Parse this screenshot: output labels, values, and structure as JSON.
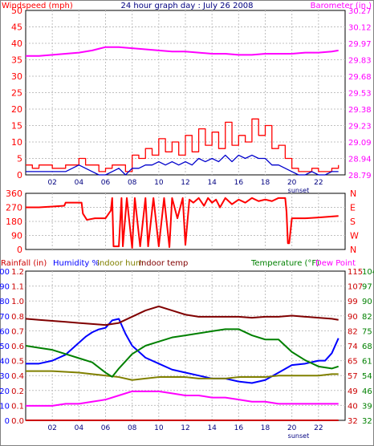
{
  "colors": {
    "windspeed": "#ff0000",
    "windavg": "#0000cc",
    "barometer": "#ff00ff",
    "direction": "#ff0000",
    "rainfall": "#cc0000",
    "humidity": "#0000ff",
    "indoor_hum": "#808000",
    "indoor_temp": "#800000",
    "temperature": "#008000",
    "dew_point": "#ff00ff",
    "grid": "#c0c0c0",
    "title": "#000080"
  },
  "chart_data": [
    {
      "type": "line",
      "title": "24 hour graph day : July 26 2008",
      "left_label": "Windspeed (mph)",
      "right_label": "Barometer (in.)",
      "x_ticks": [
        "02",
        "04",
        "06",
        "08",
        "10",
        "12",
        "14",
        "16",
        "18",
        "20",
        "22"
      ],
      "x_note": "sunset",
      "left_ticks": [
        "0",
        "5",
        "10",
        "15",
        "20",
        "25",
        "30",
        "35",
        "40",
        "45",
        "50"
      ],
      "right_ticks": [
        "28.79",
        "28.94",
        "29.09",
        "29.23",
        "29.38",
        "29.53",
        "29.68",
        "29.83",
        "29.97",
        "30.12",
        "30.27"
      ],
      "ylim_left": [
        0,
        50
      ],
      "ylim_right": [
        28.79,
        30.27
      ],
      "grid": true,
      "series": [
        {
          "name": "Windspeed (mph)",
          "axis": "left",
          "style": "step",
          "x": [
            0,
            0.5,
            1,
            1.5,
            2,
            2.5,
            3,
            3.5,
            4,
            4.5,
            5,
            5.5,
            6,
            6.5,
            7,
            7.5,
            8,
            8.5,
            9,
            9.5,
            10,
            10.5,
            11,
            11.5,
            12,
            12.5,
            13,
            13.5,
            14,
            14.5,
            15,
            15.5,
            16,
            16.5,
            17,
            17.5,
            18,
            18.5,
            19,
            19.5,
            20,
            20.5,
            21,
            21.5,
            22,
            22.5,
            23,
            23.5
          ],
          "y": [
            3,
            2,
            3,
            3,
            2,
            2,
            3,
            3,
            5,
            3,
            3,
            1,
            2,
            3,
            3,
            1,
            6,
            5,
            8,
            6,
            11,
            7,
            10,
            6,
            12,
            7,
            14,
            9,
            13,
            8,
            16,
            9,
            12,
            10,
            17,
            12,
            15,
            8,
            9,
            5,
            2,
            1,
            1,
            2,
            1,
            1,
            2,
            3
          ]
        },
        {
          "name": "Wind average",
          "axis": "left",
          "x": [
            0,
            0.5,
            1,
            1.5,
            2,
            2.5,
            3,
            3.5,
            4,
            4.5,
            5,
            5.5,
            6,
            6.5,
            7,
            7.5,
            8,
            8.5,
            9,
            9.5,
            10,
            10.5,
            11,
            11.5,
            12,
            12.5,
            13,
            13.5,
            14,
            14.5,
            15,
            15.5,
            16,
            16.5,
            17,
            17.5,
            18,
            18.5,
            19,
            19.5,
            20,
            20.5,
            21,
            21.5,
            22,
            22.5,
            23,
            23.5
          ],
          "y": [
            1,
            1,
            1,
            1,
            1,
            1,
            1,
            2,
            3,
            2,
            1,
            0,
            0,
            1,
            2,
            0,
            2,
            2,
            3,
            3,
            4,
            3,
            4,
            3,
            4,
            3,
            5,
            4,
            5,
            4,
            6,
            4,
            6,
            5,
            6,
            5,
            5,
            3,
            3,
            2,
            1,
            0,
            0,
            1,
            0,
            0,
            1,
            1
          ]
        },
        {
          "name": "Barometer (in.)",
          "axis": "right",
          "x": [
            0,
            1,
            2,
            3,
            4,
            5,
            6,
            7,
            8,
            9,
            10,
            11,
            12,
            13,
            14,
            15,
            16,
            17,
            18,
            19,
            20,
            21,
            22,
            23,
            23.5
          ],
          "y": [
            29.86,
            29.86,
            29.87,
            29.88,
            29.89,
            29.91,
            29.94,
            29.94,
            29.93,
            29.92,
            29.91,
            29.9,
            29.9,
            29.89,
            29.88,
            29.88,
            29.87,
            29.87,
            29.88,
            29.88,
            29.88,
            29.89,
            29.89,
            29.9,
            29.91
          ]
        }
      ]
    },
    {
      "type": "line",
      "left_ticks": [
        "0",
        "90",
        "180",
        "270",
        "360"
      ],
      "right_ticks": [
        "N",
        "W",
        "S",
        "E",
        "N"
      ],
      "ylim_left": [
        0,
        360
      ],
      "grid": true,
      "series": [
        {
          "name": "Wind direction",
          "axis": "left",
          "x": [
            0,
            1,
            2,
            2.9,
            3,
            4.2,
            4.3,
            4.6,
            5.2,
            6,
            6.4,
            6.5,
            6.6,
            7,
            7.2,
            7.3,
            7.6,
            8,
            8.2,
            8.6,
            9,
            9.2,
            9.6,
            10,
            10.4,
            10.8,
            11,
            11.4,
            11.8,
            12,
            12.3,
            12.6,
            13,
            13.4,
            13.7,
            14,
            14.3,
            14.6,
            15,
            15.5,
            16,
            16.5,
            17,
            17.5,
            18,
            18.5,
            19,
            19.5,
            19.6,
            19.7,
            19.8,
            20,
            21,
            22,
            23.5
          ],
          "y": [
            270,
            270,
            275,
            280,
            300,
            300,
            230,
            190,
            200,
            200,
            250,
            330,
            20,
            20,
            330,
            20,
            330,
            10,
            330,
            20,
            330,
            20,
            330,
            20,
            330,
            15,
            330,
            200,
            330,
            30,
            320,
            300,
            330,
            280,
            330,
            300,
            320,
            270,
            330,
            290,
            320,
            300,
            330,
            310,
            320,
            310,
            330,
            330,
            240,
            40,
            40,
            200,
            200,
            205,
            215
          ]
        }
      ]
    },
    {
      "type": "line",
      "left_label": "Rainfall (in)",
      "labels_top": [
        "Humidity %",
        "Indoor hum",
        "Indoor temp",
        "Temperature (°F)",
        "Dew Point"
      ],
      "x_ticks": [
        "02",
        "04",
        "06",
        "08",
        "10",
        "12",
        "14",
        "16",
        "18",
        "20",
        "22"
      ],
      "x_note": "sunset",
      "left_ticks_hum": [
        "0",
        "10",
        "20",
        "30",
        "40",
        "50",
        "60",
        "70",
        "80",
        "90",
        "100"
      ],
      "left_ticks_rain": [
        "0.0",
        "0.1",
        "0.2",
        "0.4",
        "0.5",
        "0.6",
        "0.7",
        "0.8",
        "1.0",
        "1.1",
        "1.2"
      ],
      "right_ticks_indoor": [
        "32",
        "40",
        "49",
        "57",
        "65",
        "74",
        "82",
        "90",
        "99",
        "107",
        "115"
      ],
      "right_ticks_temp": [
        "32",
        "39",
        "46",
        "54",
        "61",
        "68",
        "75",
        "82",
        "90",
        "97",
        "104"
      ],
      "ylim_hum": [
        0,
        100
      ],
      "ylim_temp": [
        32,
        104
      ],
      "grid": true,
      "series": [
        {
          "name": "Rainfall (in)",
          "axis": "hum",
          "x": [
            0,
            23.5
          ],
          "y": [
            0,
            0
          ]
        },
        {
          "name": "Humidity %",
          "axis": "hum",
          "x": [
            0,
            1,
            2,
            3,
            4,
            4.5,
            5,
            5.5,
            6,
            6.5,
            7,
            7.5,
            8,
            9,
            10,
            11,
            12,
            13,
            14,
            15,
            16,
            17,
            18,
            19,
            20,
            21,
            22,
            22.5,
            23,
            23.5
          ],
          "y": [
            38,
            38,
            40,
            44,
            52,
            56,
            59,
            61,
            62,
            67,
            68,
            58,
            50,
            42,
            38,
            34,
            32,
            30,
            28,
            28,
            26,
            25,
            27,
            32,
            37,
            38,
            40,
            40,
            45,
            55
          ]
        },
        {
          "name": "Indoor hum",
          "axis": "hum",
          "x": [
            0,
            2,
            4,
            5,
            6,
            7,
            8,
            9,
            10,
            11,
            12,
            13,
            14,
            15,
            16,
            17,
            18,
            19,
            20,
            21,
            22,
            23,
            23.5
          ],
          "y": [
            33,
            33,
            32,
            31,
            30,
            29,
            27,
            28,
            29,
            29,
            29,
            28,
            28,
            28,
            29,
            29,
            29,
            30,
            30,
            30,
            30,
            31,
            31
          ]
        },
        {
          "name": "Indoor temp",
          "axis": "temp",
          "x": [
            0,
            1,
            2,
            3,
            4,
            5,
            6,
            7,
            8,
            9,
            10,
            11,
            12,
            13,
            14,
            15,
            16,
            17,
            18,
            19,
            20,
            21,
            22,
            23,
            23.5
          ],
          "y": [
            81,
            80.5,
            80,
            79.5,
            79,
            78.5,
            78,
            79,
            82,
            85,
            87,
            85,
            83,
            82,
            82,
            82,
            82,
            81.5,
            82,
            82,
            82.5,
            82,
            81.5,
            81,
            80.5
          ]
        },
        {
          "name": "Temperature (°F)",
          "axis": "temp",
          "x": [
            0,
            1,
            2,
            3,
            4,
            5,
            6,
            6.5,
            7,
            8,
            9,
            10,
            11,
            12,
            13,
            14,
            15,
            16,
            17,
            18,
            19,
            20,
            21,
            22,
            23,
            23.5
          ],
          "y": [
            68,
            67,
            66,
            64,
            62,
            60,
            55,
            53,
            57,
            64,
            68,
            70,
            72,
            73,
            74,
            75,
            76,
            76,
            73,
            71,
            71,
            65,
            61,
            58,
            57,
            58
          ]
        },
        {
          "name": "Dew Point",
          "axis": "temp",
          "x": [
            0,
            1,
            2,
            3,
            4,
            5,
            6,
            7,
            8,
            9,
            10,
            11,
            12,
            13,
            14,
            15,
            16,
            17,
            18,
            19,
            20,
            21,
            22,
            23,
            23.5
          ],
          "y": [
            39,
            39,
            39,
            40,
            40,
            41,
            42,
            44,
            46,
            46,
            46,
            45,
            44,
            44,
            43,
            43,
            42,
            41,
            41,
            40,
            40,
            40,
            40,
            40,
            40
          ]
        }
      ]
    }
  ]
}
